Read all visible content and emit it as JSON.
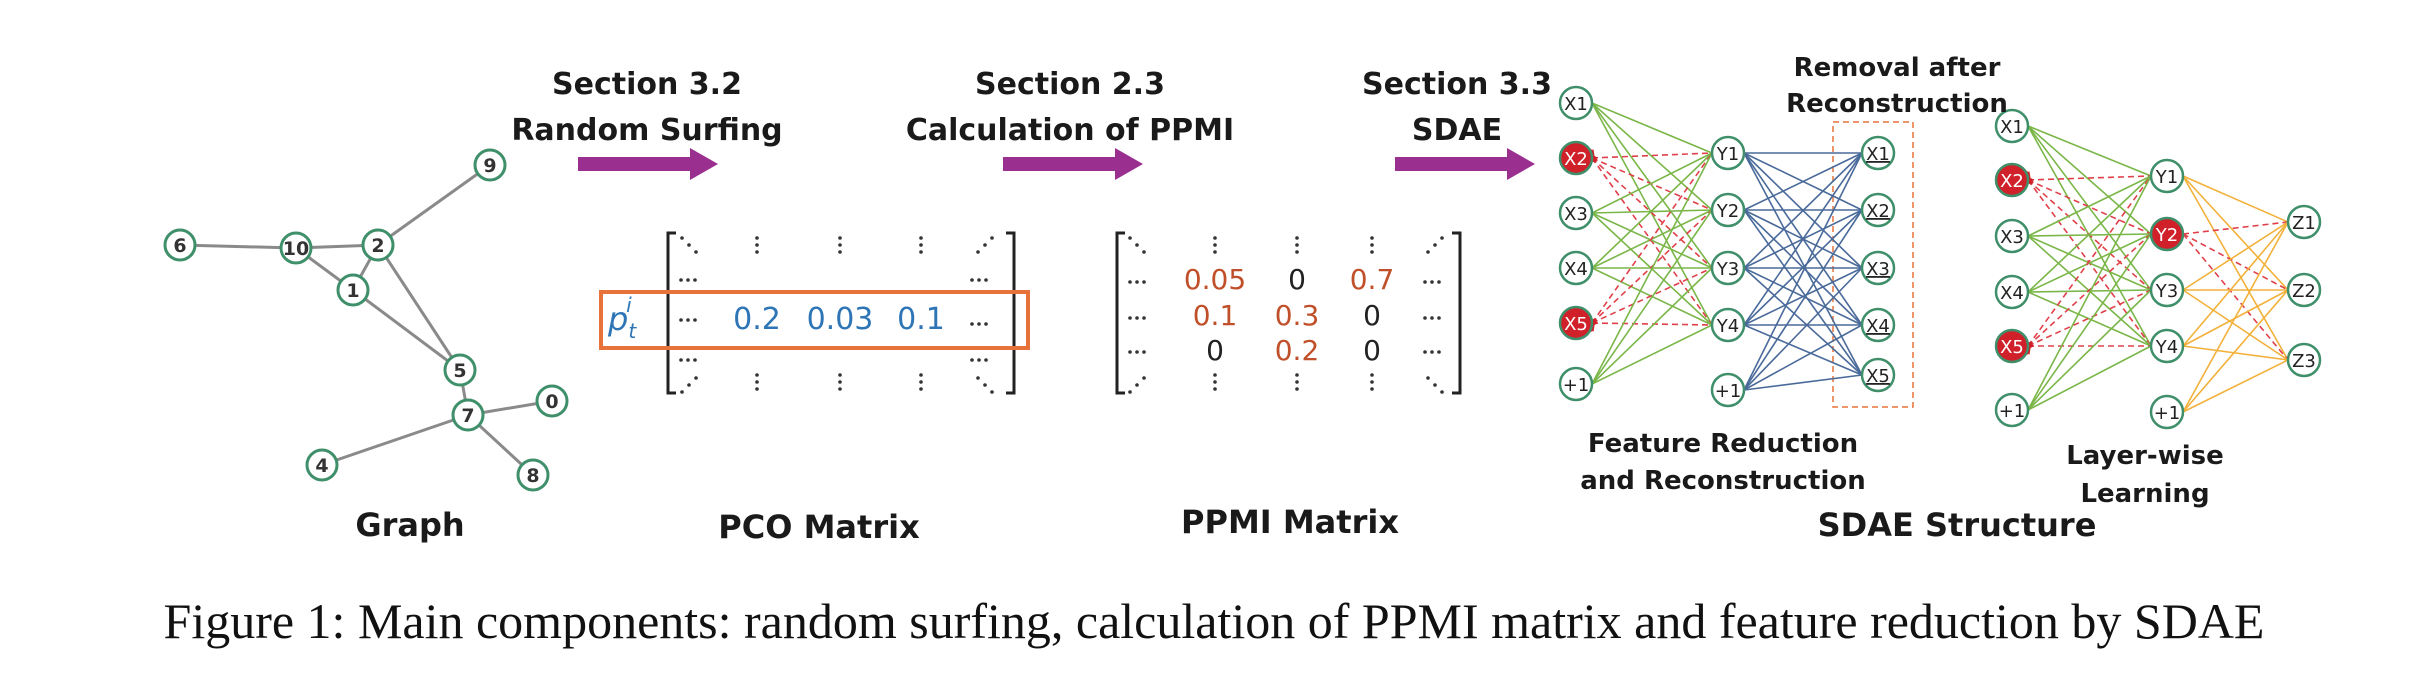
{
  "figure": {
    "caption": "Figure 1: Main components: random surfing, calculation of PPMI matrix and feature reduction by SDAE",
    "steps": [
      {
        "section": "Section 3.2",
        "name": "Random Surfing"
      },
      {
        "section": "Section 2.3",
        "name": "Calculation of PPMI"
      },
      {
        "section": "Section 3.3",
        "name": "SDAE"
      }
    ],
    "panel_labels": {
      "graph": "Graph",
      "pco": "PCO Matrix",
      "ppmi": "PPMI Matrix",
      "sdae": "SDAE Structure"
    },
    "annotations": {
      "removal": [
        "Removal after",
        "Reconstruction"
      ],
      "feature_reduction": [
        "Feature Reduction",
        "and Reconstruction"
      ],
      "layer_wise": [
        "Layer-wise",
        "Learning"
      ]
    },
    "graph": {
      "nodes": [
        "0",
        "1",
        "2",
        "4",
        "5",
        "6",
        "7",
        "8",
        "9",
        "10"
      ],
      "edges": [
        [
          "6",
          "10"
        ],
        [
          "10",
          "2"
        ],
        [
          "10",
          "1"
        ],
        [
          "1",
          "2"
        ],
        [
          "2",
          "9"
        ],
        [
          "2",
          "5"
        ],
        [
          "1",
          "5"
        ],
        [
          "5",
          "7"
        ],
        [
          "7",
          "0"
        ],
        [
          "7",
          "4"
        ],
        [
          "7",
          "8"
        ]
      ]
    },
    "pco_matrix": {
      "row_label": "p",
      "row_label_sup": "i",
      "row_label_sub": "t",
      "values": [
        "0.2",
        "0.03",
        "0.1"
      ],
      "ellipsis": "…"
    },
    "ppmi_matrix": {
      "rows": [
        [
          "0.05",
          "0",
          "0.7"
        ],
        [
          "0.1",
          "0.3",
          "0"
        ],
        [
          "0",
          "0.2",
          "0"
        ]
      ],
      "ellipsis": "…"
    },
    "network1": {
      "inputs": [
        "X1",
        "X2",
        "X3",
        "X4",
        "X5",
        "+1"
      ],
      "corrupted": [
        "X2",
        "X5"
      ],
      "hidden": [
        "Y1",
        "Y2",
        "Y3",
        "Y4",
        "+1"
      ],
      "outputs": [
        "X1",
        "X2",
        "X3",
        "X4",
        "X5"
      ]
    },
    "network2": {
      "inputs": [
        "X1",
        "X2",
        "X3",
        "X4",
        "X5",
        "+1"
      ],
      "corrupted": [
        "X2",
        "X5"
      ],
      "hidden": [
        "Y1",
        "Y2",
        "Y3",
        "Y4",
        "+1"
      ],
      "corrupted_hidden": [
        "Y2"
      ],
      "outputs": [
        "Z1",
        "Z2",
        "Z3"
      ]
    },
    "colors": {
      "node_stroke": "#3f8f6a",
      "corrupted_fill": "#d0202a",
      "green_edge": "#7ab648",
      "blue_edge": "#4a6a9a",
      "red_edge": "#e0404a",
      "orange_edge": "#f2b13b",
      "arrow": "#9b2f8f",
      "pco_box": "#e8733a",
      "pco_values": "#2e75b6",
      "ppmi_values": "#c0502a"
    }
  }
}
